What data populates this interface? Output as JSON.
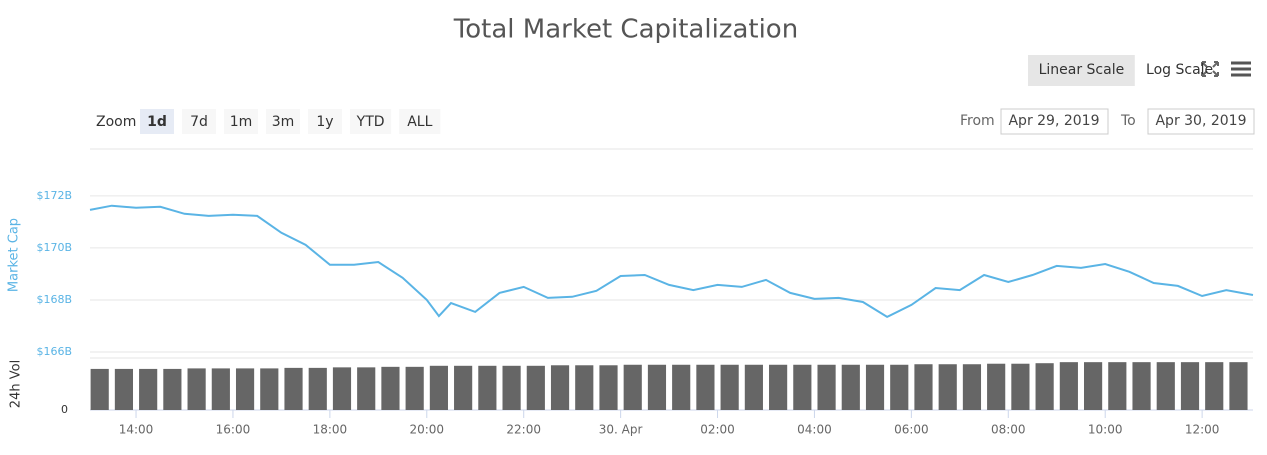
{
  "chart_data": [
    {
      "type": "line",
      "title": "Total Market Capitalization",
      "ylabel": "Market Cap",
      "color": "#5ab4e5",
      "grid": true,
      "x": [
        13.05,
        13.5,
        14,
        14.5,
        15,
        15.5,
        16,
        16.5,
        17,
        17.5,
        18,
        18.5,
        19,
        19.5,
        20,
        20.25,
        20.5,
        21,
        21.5,
        22,
        22.5,
        23,
        23.5,
        24,
        24.5,
        25,
        25.5,
        26,
        26.5,
        27,
        27.5,
        28,
        28.5,
        29,
        29.5,
        30,
        30.5,
        31,
        31.5,
        32,
        32.5,
        33,
        33.5,
        34,
        34.5,
        35,
        35.5,
        36,
        36.5,
        37.05
      ],
      "values": [
        171.46,
        171.62,
        171.54,
        171.58,
        171.31,
        171.23,
        171.27,
        171.23,
        170.58,
        170.12,
        169.35,
        169.35,
        169.46,
        168.85,
        168.0,
        167.38,
        167.88,
        167.54,
        168.27,
        168.5,
        168.08,
        168.12,
        168.35,
        168.92,
        168.96,
        168.58,
        168.38,
        168.58,
        168.5,
        168.77,
        168.27,
        168.04,
        168.08,
        167.92,
        167.35,
        167.81,
        168.46,
        168.38,
        168.96,
        168.69,
        168.96,
        169.31,
        169.23,
        169.38,
        169.08,
        168.65,
        168.54,
        168.15,
        168.38,
        168.19
      ],
      "xlim": [
        13.05,
        37.05
      ],
      "xticks": [
        {
          "value": 14,
          "label": "14:00"
        },
        {
          "value": 16,
          "label": "16:00"
        },
        {
          "value": 18,
          "label": "18:00"
        },
        {
          "value": 20,
          "label": "20:00"
        },
        {
          "value": 22,
          "label": "22:00"
        },
        {
          "value": 24,
          "label": "30. Apr"
        },
        {
          "value": 26,
          "label": "02:00"
        },
        {
          "value": 28,
          "label": "04:00"
        },
        {
          "value": 30,
          "label": "06:00"
        },
        {
          "value": 32,
          "label": "08:00"
        },
        {
          "value": 34,
          "label": "10:00"
        },
        {
          "value": 36,
          "label": "12:00"
        }
      ],
      "ylim": [
        166,
        173.8
      ],
      "yticks": [
        {
          "value": 166,
          "label": "$166B"
        },
        {
          "value": 168,
          "label": "$168B"
        },
        {
          "value": 170,
          "label": "$170B"
        },
        {
          "value": 172,
          "label": "$172B"
        }
      ]
    },
    {
      "type": "bar",
      "ylabel": "24h Vol",
      "color": "#666666",
      "x": [
        13.25,
        13.75,
        14.25,
        14.75,
        15.25,
        15.75,
        16.25,
        16.75,
        17.25,
        17.75,
        18.25,
        18.75,
        19.25,
        19.75,
        20.25,
        20.75,
        21.25,
        21.75,
        22.25,
        22.75,
        23.25,
        23.75,
        24.25,
        24.75,
        25.25,
        25.75,
        26.25,
        26.75,
        27.25,
        27.75,
        28.25,
        28.75,
        29.25,
        29.75,
        30.25,
        30.75,
        31.25,
        31.75,
        32.25,
        32.75,
        33.25,
        33.75,
        34.25,
        34.75,
        35.25,
        35.75,
        36.25,
        36.75
      ],
      "values": [
        79,
        79,
        79,
        79,
        80,
        80,
        80,
        80,
        81,
        81,
        82,
        82,
        83,
        83,
        85,
        85,
        85,
        85,
        85,
        86,
        86,
        86,
        87,
        87,
        87,
        87,
        87,
        87,
        87,
        87,
        87,
        87,
        87,
        87,
        88,
        88,
        88,
        89,
        89,
        90,
        92,
        92,
        92,
        92,
        92,
        92,
        92,
        92
      ],
      "xlim": [
        13.05,
        37.05
      ],
      "ylim": [
        0,
        100
      ],
      "yticks": [
        0
      ]
    }
  ],
  "toolbar": {
    "zoom_label": "Zoom",
    "zoom_buttons": [
      "1d",
      "7d",
      "1m",
      "3m",
      "1y",
      "YTD",
      "ALL"
    ],
    "zoom_selected": 0,
    "scale_buttons": [
      "Linear Scale",
      "Log Scale"
    ],
    "scale_selected": 0,
    "from_label": "From",
    "from": "Apr 29, 2019",
    "to_label": "To",
    "to": "Apr 30, 2019"
  }
}
